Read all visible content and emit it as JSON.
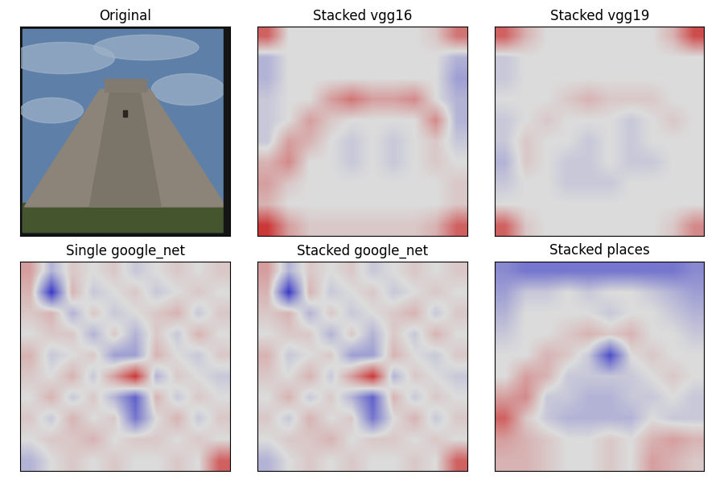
{
  "chart_data": [
    {
      "type": "image",
      "title": "Original",
      "tick_labels": false
    },
    {
      "type": "heatmap",
      "title": "Stacked vgg16",
      "tick_labels": false,
      "zlim": [
        -1,
        1
      ],
      "cells": [
        [
          0.6,
          0,
          0,
          0,
          0,
          0,
          0,
          0,
          0.1,
          0.5
        ],
        [
          -0.2,
          0,
          0,
          0,
          0,
          0,
          0,
          0,
          0,
          -0.2
        ],
        [
          -0.2,
          0,
          0,
          0,
          0,
          0,
          0,
          0,
          0,
          -0.3
        ],
        [
          -0.1,
          0,
          0,
          0.3,
          0.5,
          0.3,
          0.3,
          0.4,
          0,
          -0.2
        ],
        [
          -0.1,
          0,
          0.3,
          0.1,
          0,
          0,
          0,
          0,
          0.4,
          -0.2
        ],
        [
          -0.1,
          0.3,
          0.2,
          0,
          -0.1,
          0,
          -0.1,
          0,
          0.1,
          -0.1
        ],
        [
          0.2,
          0.4,
          0,
          0,
          -0.1,
          0,
          -0.1,
          0,
          0.1,
          0
        ],
        [
          0.3,
          0.1,
          0,
          0,
          0,
          0,
          0,
          0,
          0,
          0.1
        ],
        [
          0.2,
          0,
          0,
          0,
          0,
          0,
          0,
          0,
          0,
          0.1
        ],
        [
          0.8,
          0.3,
          0.1,
          0.1,
          0.1,
          0.1,
          0.1,
          0.1,
          0.2,
          0.6
        ]
      ]
    },
    {
      "type": "heatmap",
      "title": "Stacked vgg19",
      "tick_labels": false,
      "zlim": [
        -1,
        1
      ],
      "cells": [
        [
          0.6,
          0.2,
          0,
          0,
          0,
          0,
          0,
          0,
          0.2,
          0.7
        ],
        [
          -0.1,
          0,
          0,
          0,
          0,
          0,
          0,
          0,
          0,
          0
        ],
        [
          -0.1,
          0,
          0,
          0,
          0,
          0,
          0,
          0,
          0,
          0
        ],
        [
          0,
          0,
          0,
          0.1,
          0.2,
          0.1,
          0.1,
          0.1,
          0,
          0
        ],
        [
          -0.1,
          0,
          0.1,
          0,
          0,
          0,
          -0.1,
          0,
          0.1,
          0
        ],
        [
          -0.1,
          0.1,
          0,
          0,
          -0.1,
          0,
          -0.1,
          0,
          0,
          0
        ],
        [
          -0.2,
          0.1,
          0,
          -0.1,
          -0.1,
          0,
          -0.1,
          -0.1,
          0,
          0
        ],
        [
          -0.1,
          0,
          0,
          -0.1,
          -0.1,
          -0.1,
          0,
          0,
          0,
          0
        ],
        [
          0,
          0,
          0,
          0,
          0,
          0,
          0,
          0,
          0,
          0
        ],
        [
          0.6,
          0.1,
          0,
          0,
          0,
          0,
          0,
          0,
          0.1,
          0.4
        ]
      ]
    },
    {
      "type": "heatmap",
      "title": "Single google_net",
      "tick_labels": false,
      "zlim": [
        -1,
        1
      ],
      "cells": [
        [
          0.3,
          -0.2,
          0.1,
          0,
          0.1,
          -0.1,
          0,
          0.1,
          0,
          0.1
        ],
        [
          0.2,
          -0.8,
          0.2,
          -0.1,
          0,
          0.1,
          -0.1,
          0,
          0.1,
          0
        ],
        [
          0.1,
          0.2,
          -0.2,
          0.1,
          -0.1,
          0,
          0.1,
          0.2,
          -0.1,
          0.1
        ],
        [
          0,
          0.1,
          0.1,
          -0.2,
          0.1,
          -0.2,
          0.1,
          -0.1,
          0.2,
          0
        ],
        [
          0.2,
          -0.1,
          0,
          0.1,
          -0.3,
          -0.3,
          0.2,
          0,
          -0.1,
          0.1
        ],
        [
          0.1,
          0,
          0.2,
          -0.1,
          0.3,
          0.8,
          -0.2,
          0.1,
          0,
          -0.1
        ],
        [
          0,
          0.2,
          -0.1,
          0.1,
          -0.2,
          -0.6,
          0.2,
          -0.1,
          0.1,
          0
        ],
        [
          0.1,
          -0.1,
          0.2,
          0,
          0.1,
          -0.5,
          0,
          0.2,
          -0.1,
          0.1
        ],
        [
          0,
          0.1,
          0.1,
          0.2,
          0,
          0.1,
          0.1,
          0,
          0.1,
          0
        ],
        [
          -0.2,
          0,
          0.1,
          0,
          0.1,
          0,
          0,
          0.1,
          0,
          0.6
        ]
      ]
    },
    {
      "type": "heatmap",
      "title": "Stacked google_net",
      "tick_labels": false,
      "zlim": [
        -1,
        1
      ],
      "cells": [
        [
          0.3,
          -0.2,
          0.1,
          0,
          0.1,
          -0.1,
          0,
          0.1,
          0,
          0.1
        ],
        [
          0.2,
          -0.8,
          0.2,
          -0.1,
          0,
          0.1,
          -0.1,
          0,
          0.1,
          0
        ],
        [
          0.1,
          0.2,
          -0.2,
          0.1,
          -0.1,
          0,
          0.1,
          0.2,
          -0.1,
          0.1
        ],
        [
          0,
          0.1,
          0.1,
          -0.2,
          0.1,
          -0.2,
          0.1,
          -0.1,
          0.2,
          0
        ],
        [
          0.2,
          -0.1,
          0,
          0.1,
          -0.3,
          -0.3,
          0.2,
          0,
          -0.1,
          0.1
        ],
        [
          0.1,
          0,
          0.2,
          -0.1,
          0.3,
          0.8,
          -0.2,
          0.1,
          0,
          -0.1
        ],
        [
          0,
          0.2,
          -0.1,
          0.1,
          -0.2,
          -0.6,
          0.2,
          -0.1,
          0.1,
          0
        ],
        [
          0.1,
          -0.1,
          0.2,
          0,
          0.1,
          -0.5,
          0,
          0.2,
          -0.1,
          0.1
        ],
        [
          0,
          0.1,
          0.1,
          0.2,
          0,
          0.1,
          0.1,
          0,
          0.1,
          0
        ],
        [
          -0.2,
          0,
          0.1,
          0,
          0.1,
          0,
          0,
          0.1,
          0,
          0.6
        ]
      ]
    },
    {
      "type": "heatmap",
      "title": "Stacked places",
      "tick_labels": false,
      "zlim": [
        -1,
        1
      ],
      "cells": [
        [
          -0.4,
          -0.5,
          -0.5,
          -0.5,
          -0.5,
          -0.5,
          -0.5,
          -0.5,
          -0.5,
          -0.4
        ],
        [
          -0.3,
          -0.1,
          -0.1,
          0,
          -0.1,
          0,
          0,
          -0.1,
          -0.2,
          -0.3
        ],
        [
          -0.2,
          0,
          0,
          0,
          0,
          -0.1,
          0,
          0,
          -0.1,
          -0.2
        ],
        [
          -0.1,
          0,
          0,
          0.1,
          0.2,
          0.1,
          0.2,
          0,
          0,
          -0.1
        ],
        [
          0,
          0,
          0.2,
          0.1,
          -0.1,
          -0.7,
          0,
          0.1,
          0,
          0
        ],
        [
          0,
          0.3,
          0.2,
          -0.1,
          -0.1,
          -0.1,
          -0.1,
          0,
          0.1,
          0
        ],
        [
          0.3,
          0.4,
          -0.1,
          -0.1,
          -0.2,
          -0.2,
          -0.1,
          -0.1,
          0,
          -0.1
        ],
        [
          0.6,
          0.1,
          -0.1,
          -0.2,
          -0.2,
          -0.2,
          -0.2,
          0,
          -0.1,
          -0.1
        ],
        [
          0.3,
          0.2,
          0.1,
          0,
          0,
          0.1,
          0,
          0.2,
          0.3,
          0.2
        ],
        [
          0.2,
          0.2,
          0.1,
          0,
          0,
          0.1,
          0,
          0.3,
          0.2,
          0.1
        ]
      ]
    }
  ]
}
